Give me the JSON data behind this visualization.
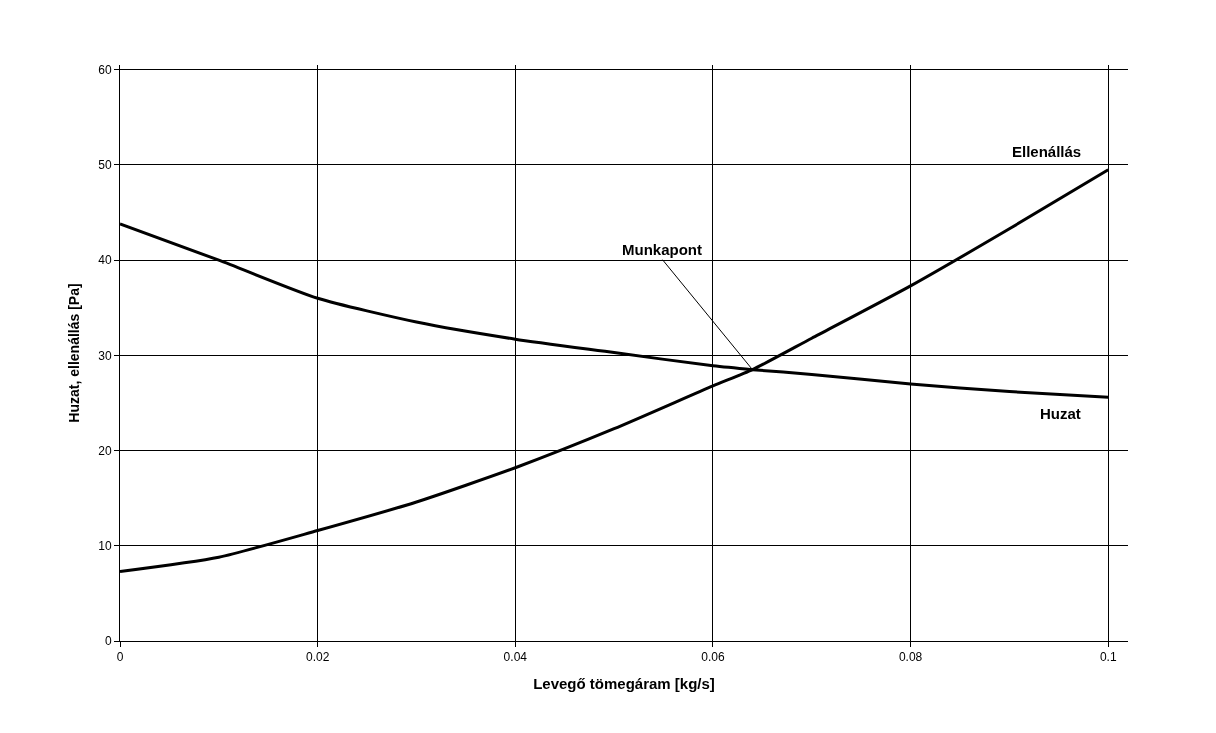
{
  "chart_data": {
    "type": "line",
    "xlabel": "Levegő tömegáram [kg/s]",
    "ylabel": "Huzat, ellenállás [Pa]",
    "x": [
      0,
      0.01,
      0.02,
      0.03,
      0.04,
      0.05,
      0.06,
      0.064,
      0.07,
      0.08,
      0.09,
      0.1
    ],
    "series": [
      {
        "name": "Ellenállás",
        "color": "#000000",
        "values": [
          7.3,
          8.8,
          11.6,
          14.6,
          18.2,
          22.3,
          26.8,
          28.5,
          31.8,
          37.3,
          43.3,
          49.5
        ]
      },
      {
        "name": "Huzat",
        "color": "#000000",
        "values": [
          43.8,
          40.0,
          36.0,
          33.5,
          31.7,
          30.3,
          28.9,
          28.5,
          28.0,
          27.0,
          26.2,
          25.6
        ]
      }
    ],
    "annotations": [
      {
        "text": "Munkapont",
        "x": 0.064,
        "y": 28.5
      }
    ],
    "xlim": [
      0,
      0.102
    ],
    "ylim": [
      0,
      60.5
    ],
    "xticks": [
      0,
      0.02,
      0.04,
      0.06,
      0.08,
      0.1
    ],
    "yticks": [
      0,
      10,
      20,
      30,
      40,
      50,
      60
    ],
    "grid": true,
    "legend": false,
    "marker": "none",
    "line_style": "solid"
  }
}
